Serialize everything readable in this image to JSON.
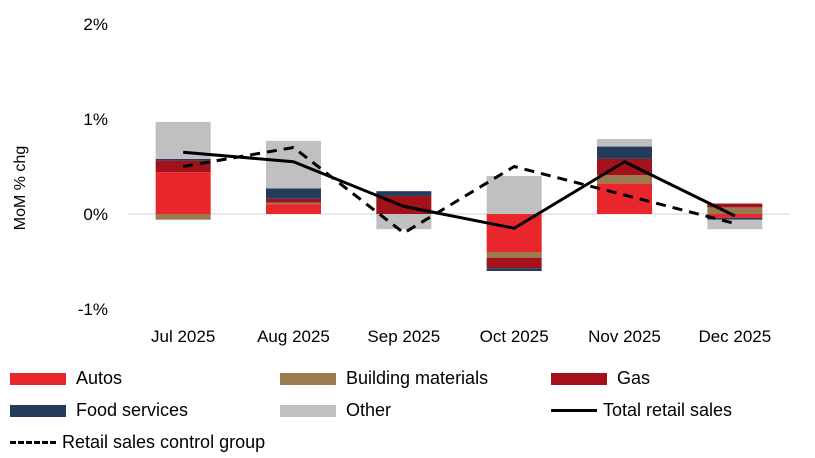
{
  "chart_data": {
    "type": "bar",
    "stacked": true,
    "ylabel": "MoM % chg",
    "ylim": [
      -1,
      2
    ],
    "yticks": [
      -1,
      0,
      1,
      2
    ],
    "ytick_labels": [
      "-1%",
      "0%",
      "1%",
      "2%"
    ],
    "categories": [
      "Jul 2025",
      "Aug 2025",
      "Sep 2025",
      "Oct 2025",
      "Nov 2025",
      "Dec 2025"
    ],
    "series": [
      {
        "name": "Autos",
        "color": "#e8262b",
        "values": [
          0.44,
          0.1,
          0.0,
          -0.4,
          0.32,
          -0.04
        ]
      },
      {
        "name": "Building materials",
        "color": "#9b7a4f",
        "values": [
          -0.06,
          0.02,
          0.0,
          -0.06,
          0.09,
          0.07
        ]
      },
      {
        "name": "Gas",
        "color": "#a3111a",
        "values": [
          0.12,
          0.04,
          0.19,
          -0.11,
          0.17,
          0.04
        ]
      },
      {
        "name": "Food services",
        "color": "#243b5c",
        "values": [
          0.02,
          0.11,
          0.05,
          -0.03,
          0.13,
          -0.02
        ]
      },
      {
        "name": "Other",
        "color": "#c0c0c0",
        "values": [
          0.39,
          0.5,
          -0.16,
          0.4,
          0.08,
          -0.1
        ]
      }
    ],
    "lines": [
      {
        "name": "Total retail sales",
        "color": "#000000",
        "style": "solid",
        "values": [
          0.65,
          0.55,
          0.08,
          -0.15,
          0.55,
          -0.02
        ]
      },
      {
        "name": "Retail sales control group",
        "color": "#000000",
        "style": "dashed",
        "values": [
          0.5,
          0.7,
          -0.2,
          0.5,
          0.2,
          -0.1
        ]
      }
    ]
  },
  "legend": {
    "autos": "Autos",
    "building_materials": "Building materials",
    "gas": "Gas",
    "food_services": "Food services",
    "other": "Other",
    "total_retail_sales": "Total retail sales",
    "control_group": "Retail sales control group"
  },
  "colors": {
    "autos": "#e8262b",
    "building_materials": "#9b7a4f",
    "gas": "#a3111a",
    "food_services": "#243b5c",
    "other": "#c0c0c0"
  }
}
